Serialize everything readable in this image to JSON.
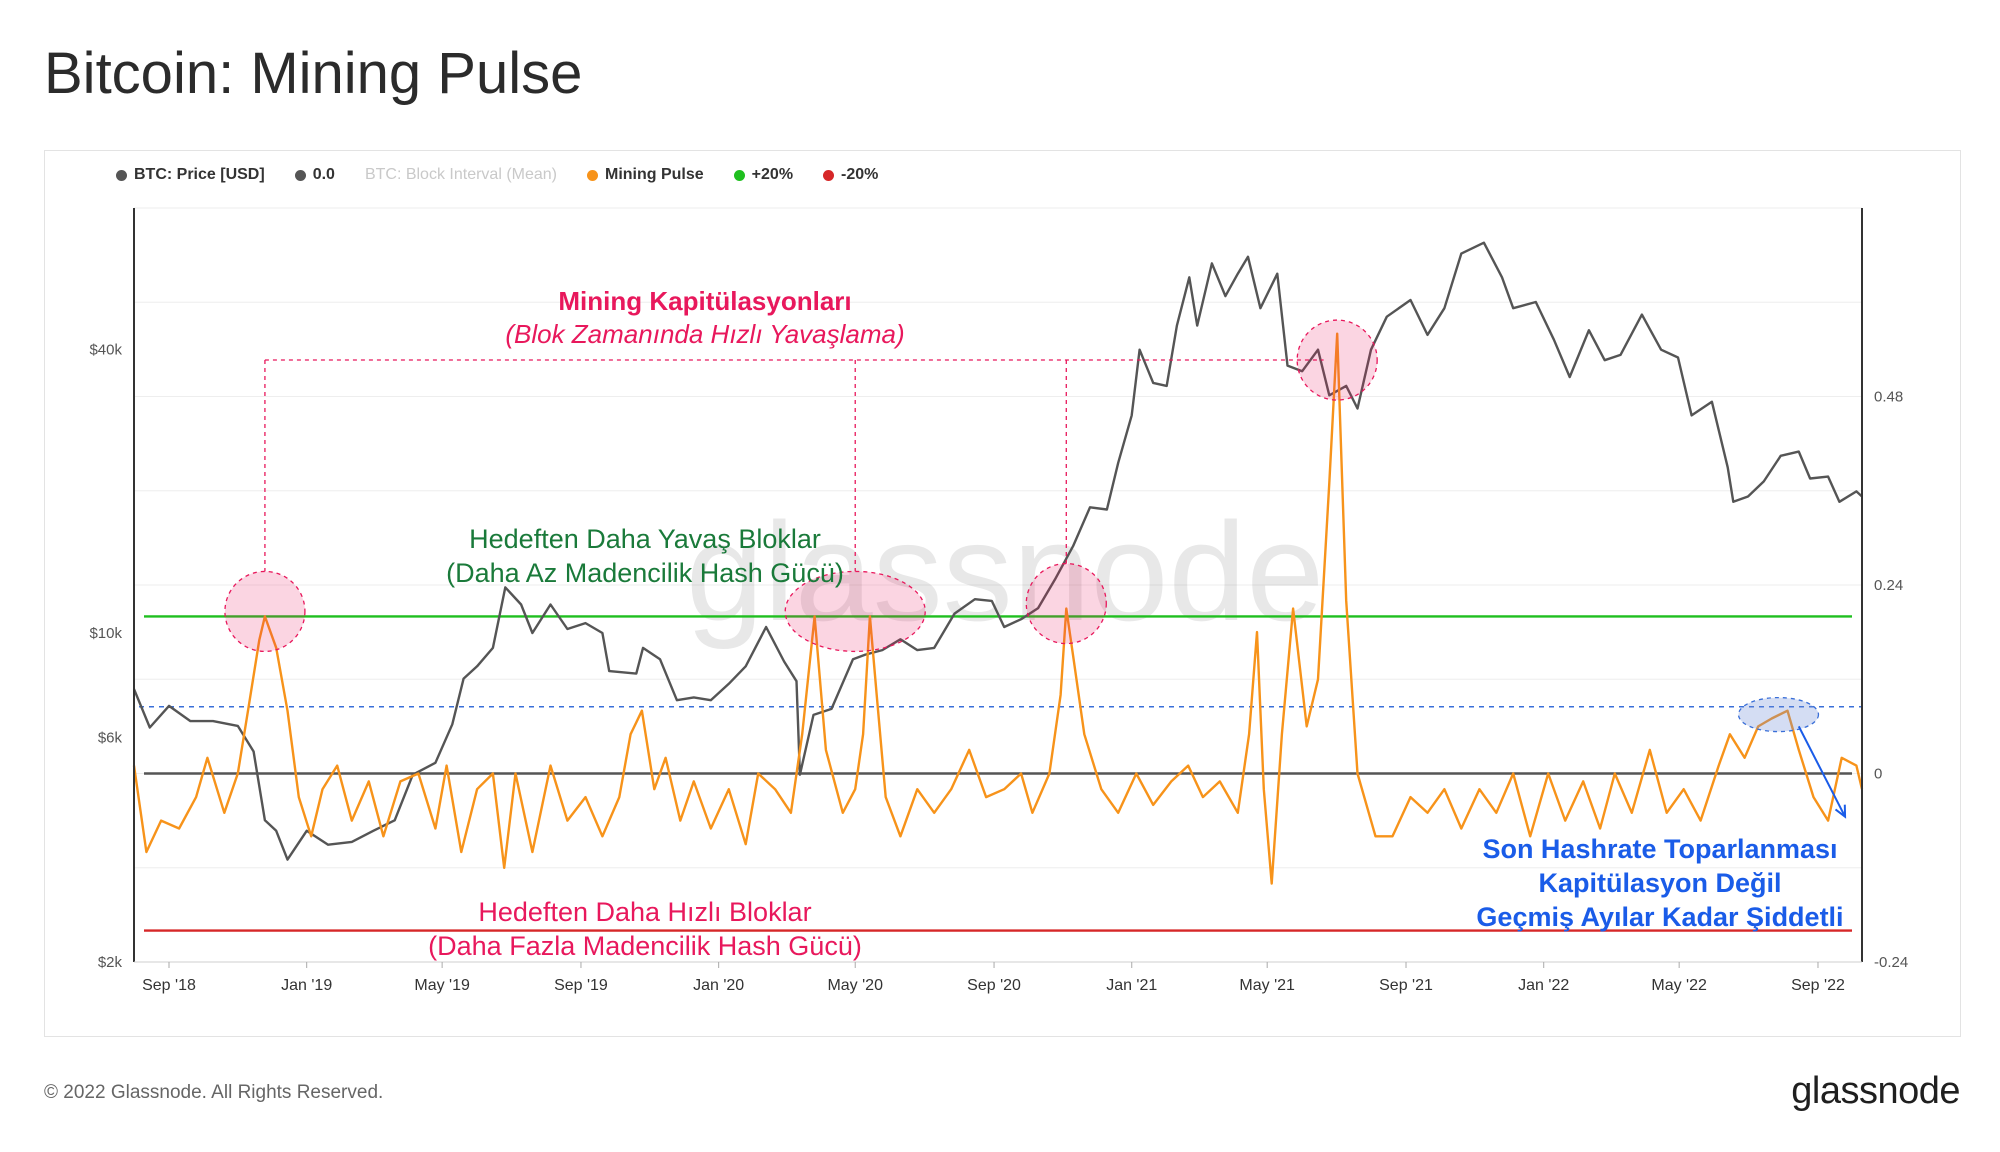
{
  "page": {
    "title": "Bitcoin: Mining Pulse"
  },
  "legend": [
    {
      "label": "BTC: Price [USD]",
      "color": "#555555",
      "muted": false
    },
    {
      "label": "0.0",
      "color": "#555555",
      "muted": false
    },
    {
      "label": "BTC: Block Interval (Mean)",
      "color": "#cccccc",
      "muted": true
    },
    {
      "label": "Mining Pulse",
      "color": "#f7931a",
      "muted": false
    },
    {
      "label": "+20%",
      "color": "#1fbf1f",
      "muted": false
    },
    {
      "label": "-20%",
      "color": "#d62728",
      "muted": false
    }
  ],
  "watermark": "glassnode",
  "footer": {
    "copyright": "© 2022 Glassnode. All Rights Reserved.",
    "logo": "glassnode"
  },
  "annotations": {
    "capitulations_title": "Mining Kapitülasyonları",
    "capitulations_subtitle": "(Blok Zamanında Hızlı Yavaşlama)",
    "slower_title": "Hedeften Daha Yavaş Bloklar",
    "slower_subtitle": "(Daha Az Madencilik Hash Gücü)",
    "faster_title": "Hedeften Daha Hızlı Bloklar",
    "faster_subtitle": "(Daha Fazla Madencilik Hash Gücü)",
    "recent_line1": "Son Hashrate Toparlanması",
    "recent_line2": "Kapitülasyon Değil",
    "recent_line3": "Geçmiş Ayılar Kadar Şiddetli"
  },
  "chart_data": {
    "type": "line",
    "x_range": [
      "2018-08-01",
      "2022-10-10"
    ],
    "x_ticks": [
      "Sep '18",
      "Jan '19",
      "May '19",
      "Sep '19",
      "Jan '20",
      "May '20",
      "Sep '20",
      "Jan '21",
      "May '21",
      "Sep '21",
      "Jan '22",
      "May '22",
      "Sep '22"
    ],
    "y_left": {
      "scale": "log",
      "ticks": [
        "$2k",
        "$6k",
        "$10k",
        "$40k"
      ],
      "tick_values": [
        2000,
        6000,
        10000,
        40000
      ],
      "range": [
        2000,
        80000
      ]
    },
    "y_right": {
      "scale": "linear",
      "ticks": [
        "-0.24",
        "0",
        "0.24",
        "0.48"
      ],
      "tick_values": [
        -0.24,
        0,
        0.24,
        0.48
      ],
      "range": [
        -0.24,
        0.72
      ]
    },
    "reference_lines": [
      {
        "name": "0.0",
        "value": 0,
        "color": "#555555"
      },
      {
        "name": "+20%",
        "value": 0.2,
        "color": "#1fbf1f"
      },
      {
        "name": "-20%",
        "value": -0.2,
        "color": "#d62728"
      },
      {
        "name": "recent_peak",
        "value": 0.085,
        "color": "#3a6fd8",
        "style": "dashed"
      }
    ],
    "series": [
      {
        "name": "BTC: Price [USD]",
        "color": "#555555",
        "axis": "left",
        "points": [
          [
            "2018-08-01",
            7600
          ],
          [
            "2018-08-15",
            6300
          ],
          [
            "2018-09-01",
            7000
          ],
          [
            "2018-09-20",
            6500
          ],
          [
            "2018-10-10",
            6500
          ],
          [
            "2018-11-01",
            6350
          ],
          [
            "2018-11-15",
            5600
          ],
          [
            "2018-11-25",
            4000
          ],
          [
            "2018-12-05",
            3800
          ],
          [
            "2018-12-15",
            3300
          ],
          [
            "2019-01-01",
            3800
          ],
          [
            "2019-01-20",
            3550
          ],
          [
            "2019-02-10",
            3600
          ],
          [
            "2019-03-01",
            3800
          ],
          [
            "2019-03-20",
            4000
          ],
          [
            "2019-04-05",
            5000
          ],
          [
            "2019-04-25",
            5300
          ],
          [
            "2019-05-10",
            6400
          ],
          [
            "2019-05-20",
            8000
          ],
          [
            "2019-06-01",
            8500
          ],
          [
            "2019-06-15",
            9300
          ],
          [
            "2019-06-26",
            12500
          ],
          [
            "2019-07-10",
            11500
          ],
          [
            "2019-07-20",
            10000
          ],
          [
            "2019-08-05",
            11500
          ],
          [
            "2019-08-20",
            10200
          ],
          [
            "2019-09-05",
            10500
          ],
          [
            "2019-09-20",
            10000
          ],
          [
            "2019-09-26",
            8300
          ],
          [
            "2019-10-20",
            8200
          ],
          [
            "2019-10-26",
            9300
          ],
          [
            "2019-11-10",
            8800
          ],
          [
            "2019-11-25",
            7200
          ],
          [
            "2019-12-10",
            7300
          ],
          [
            "2019-12-25",
            7200
          ],
          [
            "2020-01-10",
            7800
          ],
          [
            "2020-01-25",
            8500
          ],
          [
            "2020-02-12",
            10300
          ],
          [
            "2020-02-28",
            8700
          ],
          [
            "2020-03-10",
            7900
          ],
          [
            "2020-03-13",
            5000
          ],
          [
            "2020-03-25",
            6700
          ],
          [
            "2020-04-10",
            6900
          ],
          [
            "2020-04-29",
            8800
          ],
          [
            "2020-05-10",
            9000
          ],
          [
            "2020-05-25",
            9200
          ],
          [
            "2020-06-10",
            9700
          ],
          [
            "2020-06-25",
            9200
          ],
          [
            "2020-07-10",
            9300
          ],
          [
            "2020-07-28",
            11000
          ],
          [
            "2020-08-15",
            11800
          ],
          [
            "2020-08-30",
            11700
          ],
          [
            "2020-09-10",
            10300
          ],
          [
            "2020-09-25",
            10700
          ],
          [
            "2020-10-10",
            11300
          ],
          [
            "2020-10-25",
            13000
          ],
          [
            "2020-11-10",
            15300
          ],
          [
            "2020-11-25",
            18500
          ],
          [
            "2020-12-10",
            18300
          ],
          [
            "2020-12-20",
            23000
          ],
          [
            "2021-01-01",
            29000
          ],
          [
            "2021-01-08",
            40000
          ],
          [
            "2021-01-20",
            34000
          ],
          [
            "2021-02-01",
            33500
          ],
          [
            "2021-02-10",
            45000
          ],
          [
            "2021-02-21",
            57000
          ],
          [
            "2021-02-28",
            45000
          ],
          [
            "2021-03-13",
            61000
          ],
          [
            "2021-03-25",
            52000
          ],
          [
            "2021-04-05",
            58000
          ],
          [
            "2021-04-14",
            63000
          ],
          [
            "2021-04-25",
            49000
          ],
          [
            "2021-05-10",
            58000
          ],
          [
            "2021-05-19",
            37000
          ],
          [
            "2021-06-01",
            36000
          ],
          [
            "2021-06-15",
            40000
          ],
          [
            "2021-06-25",
            32000
          ],
          [
            "2021-07-10",
            33500
          ],
          [
            "2021-07-20",
            30000
          ],
          [
            "2021-08-01",
            40000
          ],
          [
            "2021-08-15",
            47000
          ],
          [
            "2021-09-05",
            51000
          ],
          [
            "2021-09-20",
            43000
          ],
          [
            "2021-10-05",
            49000
          ],
          [
            "2021-10-20",
            64000
          ],
          [
            "2021-11-09",
            67500
          ],
          [
            "2021-11-25",
            57000
          ],
          [
            "2021-12-05",
            49000
          ],
          [
            "2021-12-25",
            50500
          ],
          [
            "2022-01-10",
            42000
          ],
          [
            "2022-01-24",
            35000
          ],
          [
            "2022-02-10",
            44000
          ],
          [
            "2022-02-24",
            38000
          ],
          [
            "2022-03-10",
            39000
          ],
          [
            "2022-03-29",
            47500
          ],
          [
            "2022-04-15",
            40000
          ],
          [
            "2022-04-30",
            38500
          ],
          [
            "2022-05-12",
            29000
          ],
          [
            "2022-05-30",
            31000
          ],
          [
            "2022-06-13",
            22500
          ],
          [
            "2022-06-18",
            19000
          ],
          [
            "2022-07-01",
            19500
          ],
          [
            "2022-07-15",
            21000
          ],
          [
            "2022-07-30",
            23800
          ],
          [
            "2022-08-15",
            24300
          ],
          [
            "2022-08-25",
            21300
          ],
          [
            "2022-09-10",
            21500
          ],
          [
            "2022-09-20",
            19000
          ],
          [
            "2022-10-05",
            20000
          ],
          [
            "2022-10-10",
            19500
          ]
        ]
      },
      {
        "name": "Mining Pulse",
        "color": "#f7931a",
        "axis": "right",
        "points": [
          [
            "2018-08-01",
            0.01
          ],
          [
            "2018-08-12",
            -0.1
          ],
          [
            "2018-08-25",
            -0.06
          ],
          [
            "2018-09-10",
            -0.07
          ],
          [
            "2018-09-25",
            -0.03
          ],
          [
            "2018-10-05",
            0.02
          ],
          [
            "2018-10-20",
            -0.05
          ],
          [
            "2018-11-01",
            0.0
          ],
          [
            "2018-11-10",
            0.08
          ],
          [
            "2018-11-20",
            0.17
          ],
          [
            "2018-11-25",
            0.2
          ],
          [
            "2018-12-05",
            0.16
          ],
          [
            "2018-12-15",
            0.08
          ],
          [
            "2018-12-25",
            -0.03
          ],
          [
            "2019-01-05",
            -0.08
          ],
          [
            "2019-01-15",
            -0.02
          ],
          [
            "2019-01-28",
            0.01
          ],
          [
            "2019-02-10",
            -0.06
          ],
          [
            "2019-02-25",
            -0.01
          ],
          [
            "2019-03-10",
            -0.08
          ],
          [
            "2019-03-25",
            -0.01
          ],
          [
            "2019-04-10",
            0.0
          ],
          [
            "2019-04-25",
            -0.07
          ],
          [
            "2019-05-05",
            0.01
          ],
          [
            "2019-05-18",
            -0.1
          ],
          [
            "2019-06-01",
            -0.02
          ],
          [
            "2019-06-15",
            0.0
          ],
          [
            "2019-06-25",
            -0.12
          ],
          [
            "2019-07-05",
            0.0
          ],
          [
            "2019-07-20",
            -0.1
          ],
          [
            "2019-08-05",
            0.01
          ],
          [
            "2019-08-20",
            -0.06
          ],
          [
            "2019-09-05",
            -0.03
          ],
          [
            "2019-09-20",
            -0.08
          ],
          [
            "2019-10-05",
            -0.03
          ],
          [
            "2019-10-15",
            0.05
          ],
          [
            "2019-10-25",
            0.08
          ],
          [
            "2019-11-05",
            -0.02
          ],
          [
            "2019-11-15",
            0.02
          ],
          [
            "2019-11-28",
            -0.06
          ],
          [
            "2019-12-10",
            -0.01
          ],
          [
            "2019-12-25",
            -0.07
          ],
          [
            "2020-01-10",
            -0.02
          ],
          [
            "2020-01-25",
            -0.09
          ],
          [
            "2020-02-05",
            0.0
          ],
          [
            "2020-02-20",
            -0.02
          ],
          [
            "2020-03-05",
            -0.05
          ],
          [
            "2020-03-15",
            0.05
          ],
          [
            "2020-03-26",
            0.2
          ],
          [
            "2020-04-05",
            0.03
          ],
          [
            "2020-04-20",
            -0.05
          ],
          [
            "2020-05-01",
            -0.02
          ],
          [
            "2020-05-08",
            0.05
          ],
          [
            "2020-05-14",
            0.2
          ],
          [
            "2020-05-20",
            0.1
          ],
          [
            "2020-05-28",
            -0.03
          ],
          [
            "2020-06-10",
            -0.08
          ],
          [
            "2020-06-25",
            -0.02
          ],
          [
            "2020-07-10",
            -0.05
          ],
          [
            "2020-07-25",
            -0.02
          ],
          [
            "2020-08-10",
            0.03
          ],
          [
            "2020-08-25",
            -0.03
          ],
          [
            "2020-09-10",
            -0.02
          ],
          [
            "2020-09-25",
            0.0
          ],
          [
            "2020-10-05",
            -0.05
          ],
          [
            "2020-10-20",
            0.0
          ],
          [
            "2020-10-30",
            0.1
          ],
          [
            "2020-11-04",
            0.21
          ],
          [
            "2020-11-10",
            0.15
          ],
          [
            "2020-11-20",
            0.05
          ],
          [
            "2020-12-05",
            -0.02
          ],
          [
            "2020-12-20",
            -0.05
          ],
          [
            "2021-01-05",
            0.0
          ],
          [
            "2021-01-20",
            -0.04
          ],
          [
            "2021-02-05",
            -0.01
          ],
          [
            "2021-02-20",
            0.01
          ],
          [
            "2021-03-05",
            -0.03
          ],
          [
            "2021-03-20",
            -0.01
          ],
          [
            "2021-04-05",
            -0.05
          ],
          [
            "2021-04-15",
            0.05
          ],
          [
            "2021-04-22",
            0.18
          ],
          [
            "2021-04-28",
            -0.02
          ],
          [
            "2021-05-05",
            -0.14
          ],
          [
            "2021-05-14",
            0.05
          ],
          [
            "2021-05-24",
            0.21
          ],
          [
            "2021-06-05",
            0.06
          ],
          [
            "2021-06-15",
            0.12
          ],
          [
            "2021-06-25",
            0.37
          ],
          [
            "2021-07-02",
            0.56
          ],
          [
            "2021-07-10",
            0.22
          ],
          [
            "2021-07-20",
            0.0
          ],
          [
            "2021-08-05",
            -0.08
          ],
          [
            "2021-08-20",
            -0.08
          ],
          [
            "2021-09-05",
            -0.03
          ],
          [
            "2021-09-20",
            -0.05
          ],
          [
            "2021-10-05",
            -0.02
          ],
          [
            "2021-10-20",
            -0.07
          ],
          [
            "2021-11-05",
            -0.02
          ],
          [
            "2021-11-20",
            -0.05
          ],
          [
            "2021-12-05",
            0.0
          ],
          [
            "2021-12-20",
            -0.08
          ],
          [
            "2022-01-05",
            0.0
          ],
          [
            "2022-01-20",
            -0.06
          ],
          [
            "2022-02-05",
            -0.01
          ],
          [
            "2022-02-20",
            -0.07
          ],
          [
            "2022-03-05",
            0.0
          ],
          [
            "2022-03-20",
            -0.05
          ],
          [
            "2022-04-05",
            0.03
          ],
          [
            "2022-04-20",
            -0.05
          ],
          [
            "2022-05-05",
            -0.02
          ],
          [
            "2022-05-20",
            -0.06
          ],
          [
            "2022-06-05",
            0.01
          ],
          [
            "2022-06-15",
            0.05
          ],
          [
            "2022-06-28",
            0.02
          ],
          [
            "2022-07-10",
            0.06
          ],
          [
            "2022-07-22",
            0.07
          ],
          [
            "2022-08-05",
            0.08
          ],
          [
            "2022-08-15",
            0.03
          ],
          [
            "2022-08-28",
            -0.03
          ],
          [
            "2022-09-10",
            -0.06
          ],
          [
            "2022-09-22",
            0.02
          ],
          [
            "2022-10-05",
            0.01
          ],
          [
            "2022-10-10",
            -0.02
          ]
        ]
      }
    ]
  }
}
